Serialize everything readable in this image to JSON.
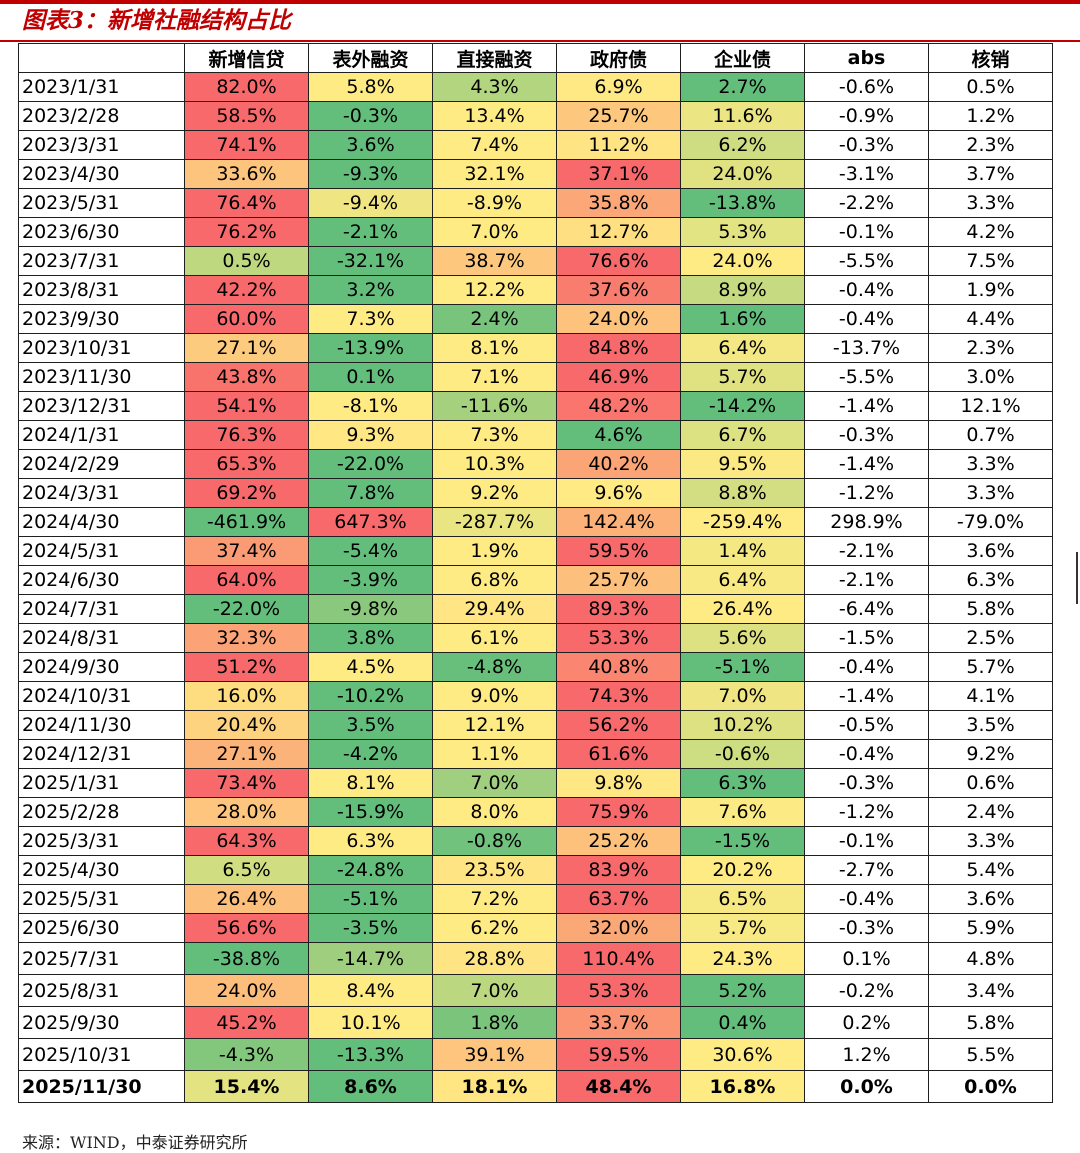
{
  "title": "图表3：新增社融结构占比",
  "source": "来源：WIND，中泰证券研究所",
  "table": {
    "headers": [
      "",
      "新增信贷",
      "表外融资",
      "直接融资",
      "政府债",
      "企业债",
      "abs",
      "核销"
    ],
    "rows": [
      [
        "2023/1/31",
        "82.0%",
        "5.8%",
        "4.3%",
        "6.9%",
        "2.7%",
        "-0.6%",
        "0.5%"
      ],
      [
        "2023/2/28",
        "58.5%",
        "-0.3%",
        "13.4%",
        "25.7%",
        "11.6%",
        "-0.9%",
        "1.2%"
      ],
      [
        "2023/3/31",
        "74.1%",
        "3.6%",
        "7.4%",
        "11.2%",
        "6.2%",
        "-0.3%",
        "2.3%"
      ],
      [
        "2023/4/30",
        "33.6%",
        "-9.3%",
        "32.1%",
        "37.1%",
        "24.0%",
        "-3.1%",
        "3.7%"
      ],
      [
        "2023/5/31",
        "76.4%",
        "-9.4%",
        "-8.9%",
        "35.8%",
        "-13.8%",
        "-2.2%",
        "3.3%"
      ],
      [
        "2023/6/30",
        "76.2%",
        "-2.1%",
        "7.0%",
        "12.7%",
        "5.3%",
        "-0.1%",
        "4.2%"
      ],
      [
        "2023/7/31",
        "0.5%",
        "-32.1%",
        "38.7%",
        "76.6%",
        "24.0%",
        "-5.5%",
        "7.5%"
      ],
      [
        "2023/8/31",
        "42.2%",
        "3.2%",
        "12.2%",
        "37.6%",
        "8.9%",
        "-0.4%",
        "1.9%"
      ],
      [
        "2023/9/30",
        "60.0%",
        "7.3%",
        "2.4%",
        "24.0%",
        "1.6%",
        "-0.4%",
        "4.4%"
      ],
      [
        "2023/10/31",
        "27.1%",
        "-13.9%",
        "8.1%",
        "84.8%",
        "6.4%",
        "-13.7%",
        "2.3%"
      ],
      [
        "2023/11/30",
        "43.8%",
        "0.1%",
        "7.1%",
        "46.9%",
        "5.7%",
        "-5.5%",
        "3.0%"
      ],
      [
        "2023/12/31",
        "54.1%",
        "-8.1%",
        "-11.6%",
        "48.2%",
        "-14.2%",
        "-1.4%",
        "12.1%"
      ],
      [
        "2024/1/31",
        "76.3%",
        "9.3%",
        "7.3%",
        "4.6%",
        "6.7%",
        "-0.3%",
        "0.7%"
      ],
      [
        "2024/2/29",
        "65.3%",
        "-22.0%",
        "10.3%",
        "40.2%",
        "9.5%",
        "-1.4%",
        "3.3%"
      ],
      [
        "2024/3/31",
        "69.2%",
        "7.8%",
        "9.2%",
        "9.6%",
        "8.8%",
        "-1.2%",
        "3.3%"
      ],
      [
        "2024/4/30",
        "-461.9%",
        "647.3%",
        "-287.7%",
        "142.4%",
        "-259.4%",
        "298.9%",
        "-79.0%"
      ],
      [
        "2024/5/31",
        "37.4%",
        "-5.4%",
        "1.9%",
        "59.5%",
        "1.4%",
        "-2.1%",
        "3.6%"
      ],
      [
        "2024/6/30",
        "64.0%",
        "-3.9%",
        "6.8%",
        "25.7%",
        "6.4%",
        "-2.1%",
        "6.3%"
      ],
      [
        "2024/7/31",
        "-22.0%",
        "-9.8%",
        "29.4%",
        "89.3%",
        "26.4%",
        "-6.4%",
        "5.8%"
      ],
      [
        "2024/8/31",
        "32.3%",
        "3.8%",
        "6.1%",
        "53.3%",
        "5.6%",
        "-1.5%",
        "2.5%"
      ],
      [
        "2024/9/30",
        "51.2%",
        "4.5%",
        "-4.8%",
        "40.8%",
        "-5.1%",
        "-0.4%",
        "5.7%"
      ],
      [
        "2024/10/31",
        "16.0%",
        "-10.2%",
        "9.0%",
        "74.3%",
        "7.0%",
        "-1.4%",
        "4.1%"
      ],
      [
        "2024/11/30",
        "20.4%",
        "3.5%",
        "12.1%",
        "56.2%",
        "10.2%",
        "-0.5%",
        "3.5%"
      ],
      [
        "2024/12/31",
        "27.1%",
        "-4.2%",
        "1.1%",
        "61.6%",
        "-0.6%",
        "-0.4%",
        "9.2%"
      ],
      [
        "2025/1/31",
        "73.4%",
        "8.1%",
        "7.0%",
        "9.8%",
        "6.3%",
        "-0.3%",
        "0.6%"
      ],
      [
        "2025/2/28",
        "28.0%",
        "-15.9%",
        "8.0%",
        "75.9%",
        "7.6%",
        "-1.2%",
        "2.4%"
      ],
      [
        "2025/3/31",
        "64.3%",
        "6.3%",
        "-0.8%",
        "25.2%",
        "-1.5%",
        "-0.1%",
        "3.3%"
      ],
      [
        "2025/4/30",
        "6.5%",
        "-24.8%",
        "23.5%",
        "83.9%",
        "20.2%",
        "-2.7%",
        "5.4%"
      ],
      [
        "2025/5/31",
        "26.4%",
        "-5.1%",
        "7.2%",
        "63.7%",
        "6.5%",
        "-0.4%",
        "3.6%"
      ],
      [
        "2025/6/30",
        "56.6%",
        "-3.5%",
        "6.2%",
        "32.0%",
        "5.7%",
        "-0.3%",
        "5.9%"
      ],
      [
        "2025/7/31",
        "-38.8%",
        "-14.7%",
        "28.8%",
        "110.4%",
        "24.3%",
        "0.1%",
        "4.8%"
      ],
      [
        "2025/8/31",
        "24.0%",
        "8.4%",
        "7.0%",
        "53.3%",
        "5.2%",
        "-0.2%",
        "3.4%"
      ],
      [
        "2025/9/30",
        "45.2%",
        "10.1%",
        "1.8%",
        "33.7%",
        "0.4%",
        "0.2%",
        "5.8%"
      ],
      [
        "2025/10/31",
        "-4.3%",
        "-13.3%",
        "39.1%",
        "59.5%",
        "30.6%",
        "1.2%",
        "5.5%"
      ],
      [
        "2025/11/30",
        "15.4%",
        "8.6%",
        "18.1%",
        "48.4%",
        "16.8%",
        "0.0%",
        "0.0%"
      ]
    ]
  },
  "colors": {
    "accent": "#c00000",
    "scale_red": "#f8696b",
    "scale_yellow": "#ffeb84",
    "scale_green": "#63be7b",
    "plain_cell": "#ffffff"
  }
}
